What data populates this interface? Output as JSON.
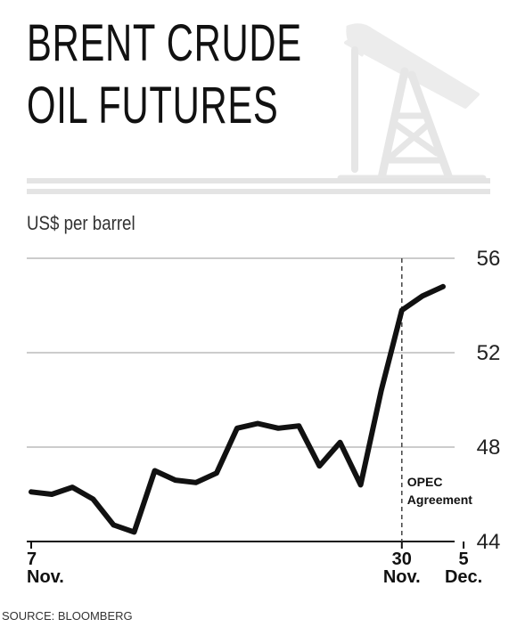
{
  "title_line1": "BRENT CRUDE",
  "title_line2": "OIL FUTURES",
  "icon": "oil-pump-icon",
  "unit_label": "US$ per barrel",
  "source": "SOURCE: BLOOMBERG",
  "colors": {
    "line": "#111111",
    "grid": "#9a9a9a",
    "rule": "#e4e4e4",
    "icon": "#e6e6e6"
  },
  "chart_data": {
    "type": "line",
    "title": "BRENT CRUDE OIL FUTURES",
    "ylabel": "US$ per barrel",
    "ylim": [
      44,
      56
    ],
    "yticks": [
      44,
      48,
      52,
      56
    ],
    "grid": true,
    "x_tick_labels": [
      {
        "index": 0,
        "day": "7",
        "month": "Nov."
      },
      {
        "index": 18,
        "day": "30",
        "month": "Nov."
      },
      {
        "index": 21,
        "day": "5",
        "month": "Dec."
      }
    ],
    "values": [
      46.1,
      46.0,
      46.3,
      45.8,
      44.7,
      44.4,
      47.0,
      46.6,
      46.5,
      46.9,
      48.8,
      49.0,
      48.8,
      48.9,
      47.2,
      48.2,
      46.4,
      50.4,
      53.8,
      54.4,
      54.8
    ],
    "series": [
      {
        "values": [
          46.1,
          46.0,
          46.3,
          45.8,
          44.7,
          44.4,
          47.0,
          46.6,
          46.5,
          46.9,
          48.8,
          49.0,
          48.8,
          48.9,
          47.2,
          48.2,
          46.4,
          50.4,
          53.8,
          54.4,
          54.8
        ]
      }
    ],
    "annotations": [
      {
        "text": "OPEC\nAgreement",
        "line1": "OPEC",
        "line2": "Agreement",
        "at_index": 18,
        "style": "dashed vertical line"
      }
    ]
  }
}
